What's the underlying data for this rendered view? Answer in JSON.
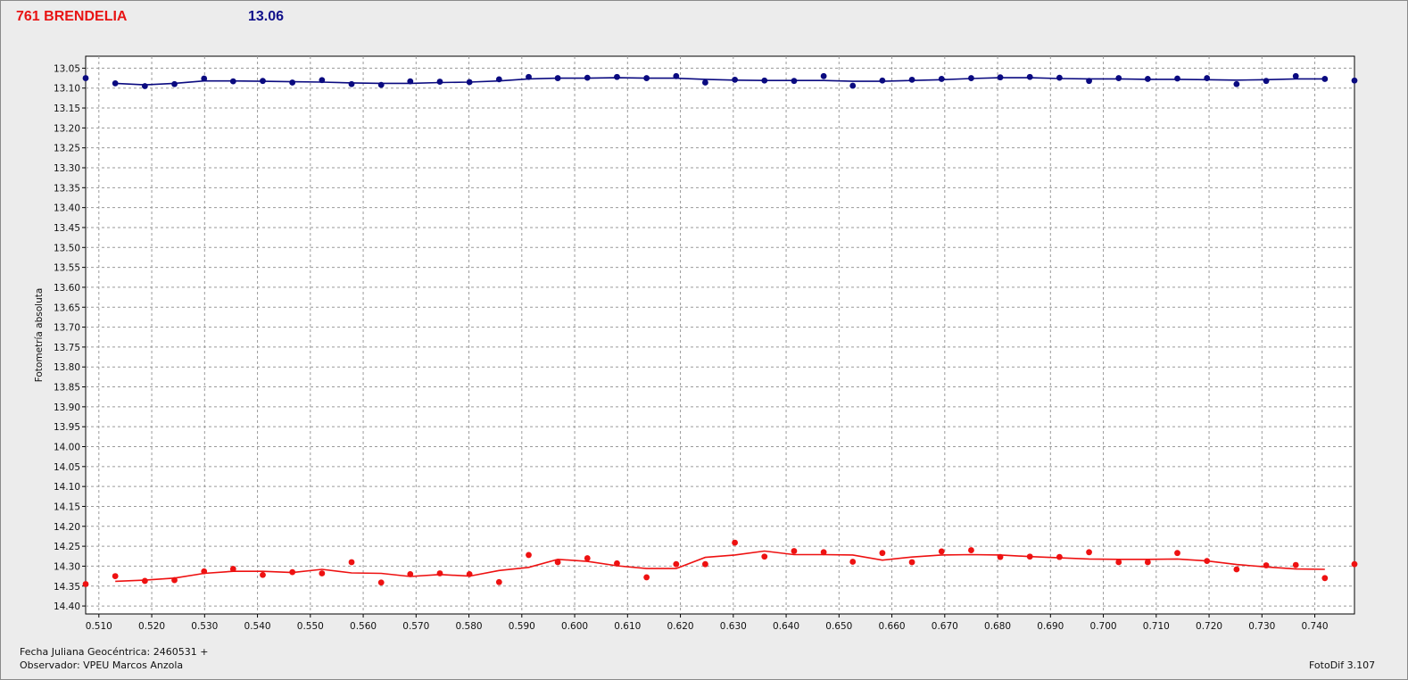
{
  "header": {
    "title": "761 BRENDELIA",
    "value": "13.06"
  },
  "footer": {
    "jd": "Fecha Juliana Geocéntrica: 2460531 +",
    "observer": "Observador: VPEU Marcos Anzola",
    "software": "FotoDif 3.107"
  },
  "chart_data": {
    "type": "line",
    "ylabel": "Fotometría absoluta",
    "xlim": [
      0.5075,
      0.7475
    ],
    "ylim": [
      13.02,
      14.42
    ],
    "y_inverted": true,
    "grid": true,
    "x_ticks": [
      "0.510",
      "0.520",
      "0.530",
      "0.540",
      "0.550",
      "0.560",
      "0.570",
      "0.580",
      "0.590",
      "0.600",
      "0.610",
      "0.620",
      "0.630",
      "0.640",
      "0.650",
      "0.660",
      "0.670",
      "0.680",
      "0.690",
      "0.700",
      "0.710",
      "0.720",
      "0.730",
      "0.740"
    ],
    "y_ticks": [
      "13.05",
      "13.10",
      "13.15",
      "13.20",
      "13.25",
      "13.30",
      "13.35",
      "13.40",
      "13.45",
      "13.50",
      "13.55",
      "13.60",
      "13.65",
      "13.70",
      "13.75",
      "13.80",
      "13.85",
      "13.90",
      "13.95",
      "14.00",
      "14.05",
      "14.10",
      "14.15",
      "14.20",
      "14.25",
      "14.30",
      "14.35",
      "14.40"
    ],
    "series": [
      {
        "color": "#0a0a80",
        "points_x": [
          0.5075,
          0.5131,
          0.5187,
          0.5243,
          0.5299,
          0.5354,
          0.541,
          0.5466,
          0.5522,
          0.5578,
          0.5634,
          0.5689,
          0.5745,
          0.5801,
          0.5857,
          0.5913,
          0.5968,
          0.6024,
          0.608,
          0.6136,
          0.6192,
          0.6247,
          0.6303,
          0.6359,
          0.6415,
          0.6471,
          0.6526,
          0.6582,
          0.6638,
          0.6694,
          0.675,
          0.6805,
          0.6861,
          0.6917,
          0.6973,
          0.7029,
          0.7084,
          0.714,
          0.7196,
          0.7252,
          0.7308,
          0.7364,
          0.7419,
          0.7475
        ],
        "points_y": [
          13.075,
          13.088,
          13.095,
          13.09,
          13.076,
          13.083,
          13.082,
          13.086,
          13.08,
          13.09,
          13.092,
          13.083,
          13.084,
          13.085,
          13.078,
          13.072,
          13.075,
          13.074,
          13.072,
          13.075,
          13.07,
          13.086,
          13.079,
          13.081,
          13.082,
          13.07,
          13.094,
          13.081,
          13.079,
          13.077,
          13.075,
          13.073,
          13.072,
          13.074,
          13.082,
          13.075,
          13.077,
          13.076,
          13.075,
          13.09,
          13.082,
          13.07,
          13.077,
          13.081
        ],
        "line_x": [
          0.5131,
          0.5187,
          0.5243,
          0.5299,
          0.5354,
          0.541,
          0.5466,
          0.5522,
          0.5578,
          0.5634,
          0.5689,
          0.5745,
          0.5801,
          0.5857,
          0.5913,
          0.5968,
          0.6024,
          0.608,
          0.6136,
          0.6192,
          0.6247,
          0.6303,
          0.6359,
          0.6415,
          0.6471,
          0.6526,
          0.6582,
          0.6638,
          0.6694,
          0.675,
          0.6805,
          0.6861,
          0.6917,
          0.6973,
          0.7029,
          0.7084,
          0.714,
          0.7196,
          0.7252,
          0.7308,
          0.7364,
          0.7419
        ],
        "line_y": [
          13.088,
          13.092,
          13.088,
          13.082,
          13.082,
          13.083,
          13.084,
          13.085,
          13.087,
          13.088,
          13.088,
          13.086,
          13.085,
          13.082,
          13.077,
          13.075,
          13.075,
          13.074,
          13.075,
          13.075,
          13.078,
          13.08,
          13.081,
          13.081,
          13.081,
          13.083,
          13.083,
          13.081,
          13.079,
          13.076,
          13.074,
          13.074,
          13.076,
          13.077,
          13.077,
          13.078,
          13.078,
          13.079,
          13.08,
          13.079,
          13.077,
          13.077
        ]
      },
      {
        "color": "#ee1111",
        "points_x": [
          0.5075,
          0.5131,
          0.5187,
          0.5243,
          0.5299,
          0.5354,
          0.541,
          0.5466,
          0.5522,
          0.5578,
          0.5634,
          0.5689,
          0.5745,
          0.5801,
          0.5857,
          0.5913,
          0.5968,
          0.6024,
          0.608,
          0.6136,
          0.6192,
          0.6247,
          0.6303,
          0.6359,
          0.6415,
          0.6471,
          0.6526,
          0.6582,
          0.6638,
          0.6694,
          0.675,
          0.6805,
          0.6861,
          0.6917,
          0.6973,
          0.7029,
          0.7084,
          0.714,
          0.7196,
          0.7252,
          0.7308,
          0.7364,
          0.7419,
          0.7475
        ],
        "points_y": [
          14.345,
          14.325,
          14.337,
          14.335,
          14.313,
          14.307,
          14.322,
          14.315,
          14.318,
          14.29,
          14.341,
          14.32,
          14.318,
          14.32,
          14.34,
          14.272,
          14.29,
          14.28,
          14.293,
          14.328,
          14.295,
          14.295,
          14.241,
          14.276,
          14.262,
          14.265,
          14.289,
          14.267,
          14.29,
          14.263,
          14.26,
          14.277,
          14.276,
          14.277,
          14.265,
          14.29,
          14.29,
          14.267,
          14.287,
          14.308,
          14.298,
          14.297,
          14.33,
          14.295
        ],
        "line_x": [
          0.5131,
          0.5187,
          0.5243,
          0.5299,
          0.5354,
          0.541,
          0.5466,
          0.5522,
          0.5578,
          0.5634,
          0.5689,
          0.5745,
          0.5801,
          0.5857,
          0.5913,
          0.5968,
          0.6024,
          0.608,
          0.6136,
          0.6192,
          0.6247,
          0.6303,
          0.6359,
          0.6415,
          0.6471,
          0.6526,
          0.6582,
          0.6638,
          0.6694,
          0.675,
          0.6805,
          0.6861,
          0.6917,
          0.6973,
          0.7029,
          0.7084,
          0.714,
          0.7196,
          0.7252,
          0.7308,
          0.7364,
          0.7419
        ],
        "line_y": [
          14.338,
          14.335,
          14.33,
          14.318,
          14.313,
          14.313,
          14.316,
          14.308,
          14.317,
          14.318,
          14.326,
          14.321,
          14.325,
          14.311,
          14.303,
          14.283,
          14.288,
          14.299,
          14.306,
          14.306,
          14.278,
          14.272,
          14.262,
          14.271,
          14.271,
          14.272,
          14.285,
          14.277,
          14.272,
          14.271,
          14.272,
          14.276,
          14.279,
          14.282,
          14.283,
          14.283,
          14.282,
          14.287,
          14.296,
          14.302,
          14.307,
          14.308
        ]
      }
    ]
  }
}
